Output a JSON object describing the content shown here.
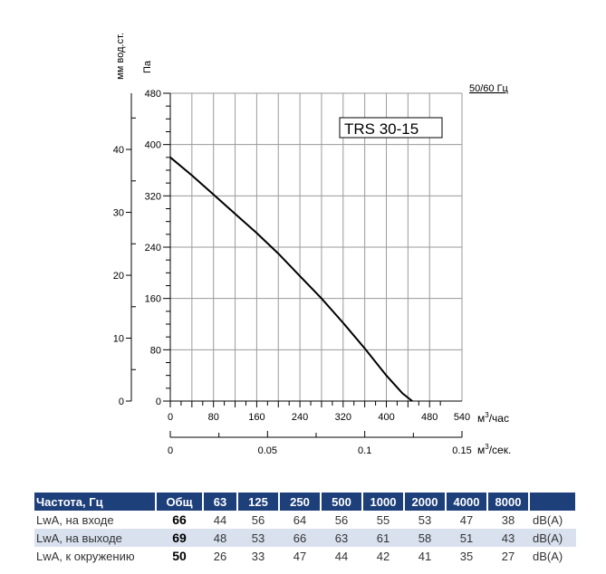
{
  "chart_data": {
    "type": "line",
    "model_label": "TRS 30-15",
    "frequency_label": "50/60 Гц",
    "y_left_label": "мм вод.ст.",
    "y_right_label": "Па",
    "x_label": "м³/час",
    "x2_label": "м³/сек.",
    "xlim": [
      0,
      540
    ],
    "ylim": [
      0,
      480
    ],
    "x_ticks": [
      "0",
      "80",
      "160",
      "240",
      "320",
      "400",
      "480",
      "540"
    ],
    "y_ticks": [
      "0",
      "80",
      "160",
      "240",
      "320",
      "400",
      "480"
    ],
    "y_mm_ticks": [
      "0",
      "10",
      "20",
      "30",
      "40"
    ],
    "x2_ticks": [
      "0",
      "0.05",
      "0.1",
      "0.15"
    ],
    "series": [
      {
        "x": [
          0,
          40,
          80,
          120,
          160,
          200,
          240,
          280,
          320,
          360,
          400,
          430,
          448
        ],
        "y": [
          380,
          352,
          322,
          292,
          262,
          230,
          195,
          160,
          122,
          82,
          40,
          12,
          0
        ]
      }
    ]
  },
  "table": {
    "header": [
      "Частота, Гц",
      "Общ",
      "63",
      "125",
      "250",
      "500",
      "1000",
      "2000",
      "4000",
      "8000",
      ""
    ],
    "rows": [
      {
        "label": "LwA, на входе",
        "total": "66",
        "values": [
          "44",
          "56",
          "64",
          "56",
          "55",
          "53",
          "47",
          "38"
        ],
        "unit": "dB(A)"
      },
      {
        "label": "LwA, на выходе",
        "total": "69",
        "values": [
          "48",
          "53",
          "66",
          "63",
          "61",
          "58",
          "51",
          "43"
        ],
        "unit": "dB(A)"
      },
      {
        "label": "LwA, к окружению",
        "total": "50",
        "values": [
          "26",
          "33",
          "47",
          "44",
          "42",
          "41",
          "35",
          "27"
        ],
        "unit": "dB(A)"
      }
    ]
  },
  "colors": {
    "header_bg": "#1d3f7a",
    "row_alt_bg": "#d9e1ef"
  }
}
